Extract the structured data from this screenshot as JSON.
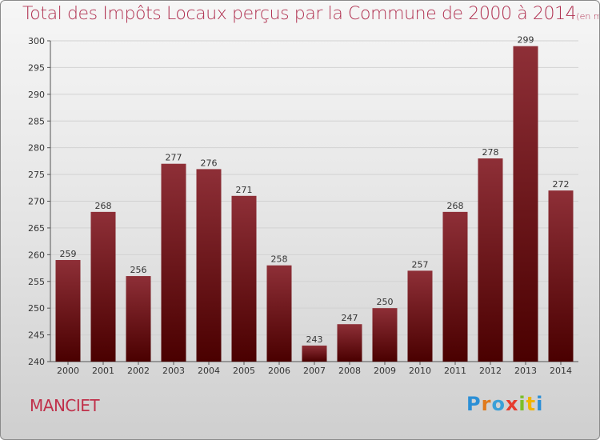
{
  "header": {
    "title": "Total des Impôts Locaux perçus par la Commune de 2000 à 2014",
    "unit": "(en milliers d'€)"
  },
  "footer": {
    "commune": "MANCIET",
    "logo": "Proxiti"
  },
  "colors": {
    "bar_top": "#8a2c34",
    "bar_bottom": "#4a0000",
    "title": "#b03050"
  },
  "chart_data": {
    "type": "bar",
    "title": "Total des Impôts Locaux perçus par la Commune de 2000 à 2014",
    "xlabel": "",
    "ylabel": "",
    "ylim": [
      240,
      300
    ],
    "yticks": [
      240,
      245,
      250,
      255,
      260,
      265,
      270,
      275,
      280,
      285,
      290,
      295,
      300
    ],
    "categories": [
      "2000",
      "2001",
      "2002",
      "2003",
      "2004",
      "2005",
      "2006",
      "2007",
      "2008",
      "2009",
      "2010",
      "2011",
      "2012",
      "2013",
      "2014"
    ],
    "values": [
      259,
      268,
      256,
      277,
      276,
      271,
      258,
      243,
      247,
      250,
      257,
      268,
      278,
      299,
      272
    ]
  }
}
